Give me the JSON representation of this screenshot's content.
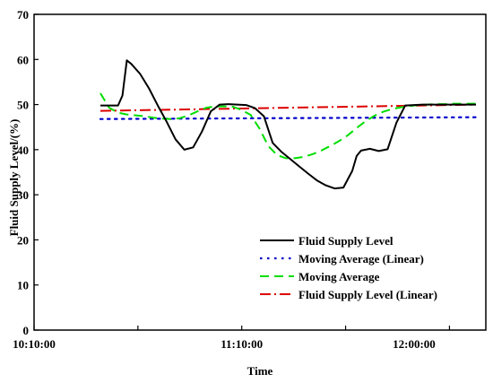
{
  "chart_data": {
    "type": "line",
    "xlabel": "Time",
    "ylabel": "Fluid Supply Level/(%)",
    "ylim": [
      0,
      70
    ],
    "yticks": [
      0,
      10,
      20,
      30,
      40,
      50,
      60,
      70
    ],
    "xlim": [
      0,
      100
    ],
    "xtick_labels": [
      {
        "x": 0,
        "label": "10:10:00"
      },
      {
        "x": 47,
        "label": "11:10:00"
      },
      {
        "x": 86,
        "label": "12:00:00"
      }
    ],
    "xtick_marks": [
      0,
      23.5,
      47,
      70.5,
      94
    ],
    "grid": false,
    "legend_position": "bottom-right",
    "series": [
      {
        "name": "Fluid Supply Level",
        "color": "#000000",
        "style": "solid",
        "x": [
          15,
          19,
          20,
          21,
          22,
          24,
          26,
          28,
          30,
          32,
          34,
          36,
          38,
          40,
          42,
          44,
          46,
          48,
          50,
          52,
          54,
          56,
          58,
          60,
          62,
          64,
          66,
          68,
          70,
          72,
          73,
          74,
          76,
          78,
          80,
          82,
          84,
          86,
          88,
          90,
          92,
          94,
          96,
          98,
          100
        ],
        "y": [
          49.8,
          49.8,
          52,
          59.8,
          59,
          56.8,
          53.6,
          49.8,
          46.2,
          42.3,
          40,
          40.5,
          44,
          48.5,
          50,
          50.1,
          50,
          49.9,
          49.2,
          47.4,
          41.5,
          39.5,
          37.9,
          36.3,
          34.7,
          33.2,
          32.1,
          31.4,
          31.6,
          35.3,
          38.6,
          39.8,
          40.2,
          39.7,
          40.1,
          46,
          49.8,
          49.9,
          50,
          50,
          50,
          50,
          50,
          50,
          50
        ]
      },
      {
        "name": "Moving Average (Linear)",
        "color": "#0000cc",
        "style": "dotted",
        "x": [
          15,
          100
        ],
        "y": [
          46.8,
          47.2
        ]
      },
      {
        "name": "Moving Average",
        "color": "#00dd00",
        "style": "dashed",
        "x": [
          15,
          17,
          19,
          21,
          23,
          25,
          27,
          29,
          31,
          33,
          35,
          37,
          39,
          41,
          43,
          45,
          47,
          49,
          51,
          53,
          55,
          57,
          59,
          61,
          63,
          65,
          67,
          69,
          71,
          73,
          75,
          77,
          79,
          81,
          83,
          85,
          87,
          89,
          91,
          93,
          95,
          97,
          99,
          100
        ],
        "y": [
          52.5,
          49.3,
          48.2,
          47.8,
          47.6,
          47.4,
          47.1,
          46.9,
          46.8,
          47,
          47.6,
          48.5,
          49.3,
          49.6,
          49.6,
          49.5,
          48.8,
          47.7,
          44.7,
          40.8,
          38.8,
          38.1,
          38.1,
          38.4,
          39,
          39.8,
          40.8,
          41.9,
          43.2,
          44.8,
          46.3,
          47.5,
          48.4,
          49,
          49.4,
          49.7,
          49.9,
          50,
          50.1,
          50.1,
          50.2,
          50.2,
          50.2,
          50.2
        ]
      },
      {
        "name": "Fluid Supply Level (Linear)",
        "color": "#dd0000",
        "style": "dashdot",
        "x": [
          15,
          100
        ],
        "y": [
          48.6,
          50.0
        ]
      }
    ]
  }
}
